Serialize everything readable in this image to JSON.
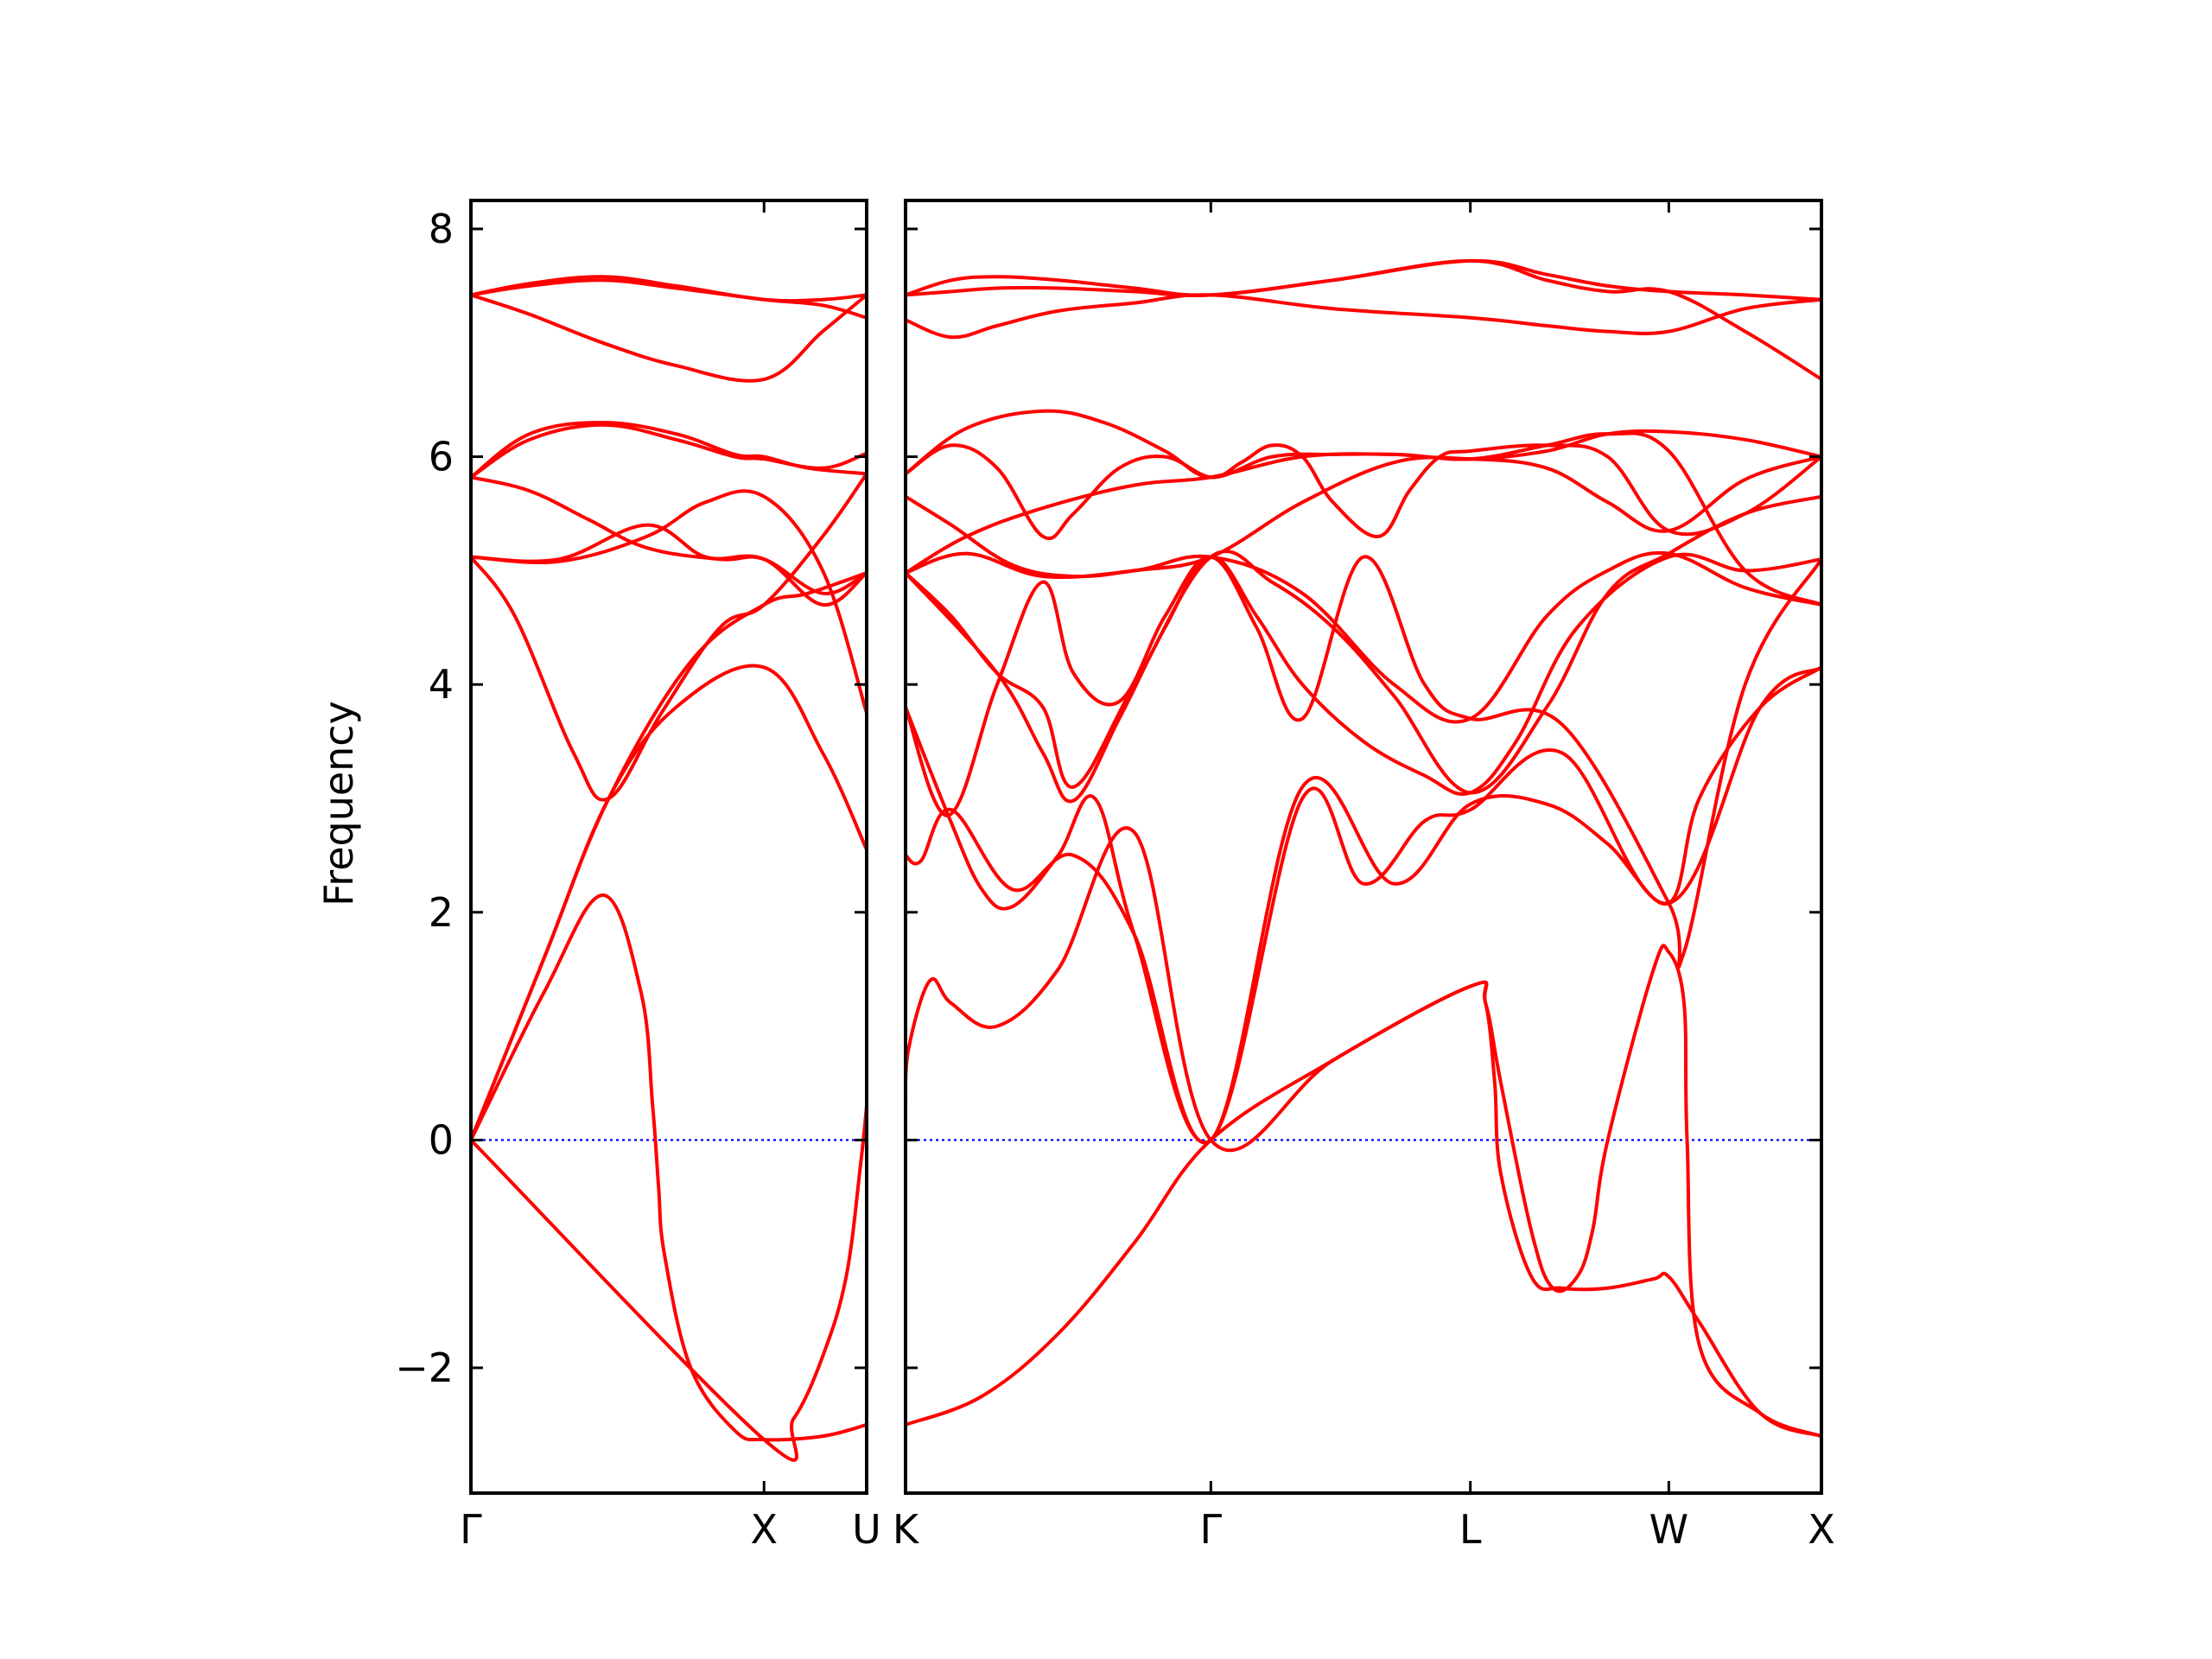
{
  "chart_data": {
    "type": "line",
    "title": "",
    "ylabel": "Frequency",
    "xlabel": "",
    "ylim": [
      -3.1,
      8.25
    ],
    "yticks": [
      -2,
      0,
      2,
      4,
      6,
      8
    ],
    "ytick_labels": [
      "−2",
      "0",
      "2",
      "4",
      "6",
      "8"
    ],
    "grid": false,
    "colors": {
      "bands": "#ff0000",
      "zero_line": "#0000ff",
      "axes": "#000000"
    },
    "zero_line": {
      "y": 0,
      "style": "dotted"
    },
    "panels": [
      {
        "name": "panel-gamma-x-u",
        "x_range": [
          0,
          1.35
        ],
        "xticks": [
          {
            "x": 0,
            "label": "Γ"
          },
          {
            "x": 1.0,
            "label": "X"
          },
          {
            "x": 1.35,
            "label": "U"
          }
        ],
        "series": [
          {
            "x": [
              0,
              0.25,
              0.45,
              0.58,
              0.62,
              0.64,
              0.66,
              0.75,
              0.9,
              1.0,
              1.2,
              1.35
            ],
            "y": [
              0,
              1.3,
              2.15,
              1.3,
              0.3,
              -0.4,
              -1.0,
              -2.0,
              -2.55,
              -2.63,
              -2.6,
              -2.5
            ]
          },
          {
            "x": [
              0,
              1.0,
              1.1,
              1.2,
              1.28,
              1.33,
              1.35
            ],
            "y": [
              0,
              -2.63,
              -2.45,
              -1.9,
              -1.2,
              -0.2,
              0.3
            ]
          },
          {
            "x": [
              0,
              0.25,
              0.47,
              0.7,
              1.0,
              1.2,
              1.35
            ],
            "y": [
              0,
              1.6,
              3.0,
              3.8,
              4.15,
              3.4,
              2.55
            ]
          },
          {
            "x": [
              0,
              0.25,
              0.47,
              0.75,
              1.0,
              1.15,
              1.35
            ],
            "y": [
              0,
              1.6,
              3.0,
              4.2,
              4.7,
              4.8,
              4.98
            ]
          },
          {
            "x": [
              0,
              0.15,
              0.35,
              0.47,
              0.65,
              0.85,
              1.0,
              1.2,
              1.35
            ],
            "y": [
              5.12,
              4.6,
              3.4,
              3.0,
              3.75,
              4.5,
              4.7,
              5.3,
              5.85
            ]
          },
          {
            "x": [
              0,
              0.3,
              0.6,
              0.8,
              1.0,
              1.2,
              1.35
            ],
            "y": [
              5.12,
              5.08,
              5.3,
              5.6,
              5.65,
              5.0,
              3.75
            ]
          },
          {
            "x": [
              0,
              0.3,
              0.6,
              0.8,
              1.0,
              1.2,
              1.35
            ],
            "y": [
              5.12,
              5.1,
              5.4,
              5.12,
              5.1,
              4.7,
              4.98
            ]
          },
          {
            "x": [
              0,
              0.2,
              0.4,
              0.6,
              0.85,
              1.0,
              1.2,
              1.35
            ],
            "y": [
              5.82,
              5.7,
              5.45,
              5.2,
              5.1,
              5.1,
              4.8,
              4.98
            ]
          },
          {
            "x": [
              0,
              0.2,
              0.45,
              0.7,
              0.9,
              1.0,
              1.15,
              1.35
            ],
            "y": [
              5.82,
              6.2,
              6.3,
              6.2,
              6.02,
              6.0,
              5.9,
              5.85
            ]
          },
          {
            "x": [
              0,
              0.2,
              0.45,
              0.7,
              0.9,
              1.0,
              1.2,
              1.35
            ],
            "y": [
              5.82,
              6.15,
              6.28,
              6.15,
              6.0,
              5.98,
              5.9,
              6.03
            ]
          },
          {
            "x": [
              0,
              0.2,
              0.45,
              0.7,
              1.0,
              1.2,
              1.35
            ],
            "y": [
              7.42,
              7.25,
              7.0,
              6.8,
              6.68,
              7.1,
              7.42
            ]
          },
          {
            "x": [
              0,
              0.2,
              0.45,
              0.7,
              1.0,
              1.2,
              1.35
            ],
            "y": [
              7.42,
              7.52,
              7.58,
              7.5,
              7.38,
              7.38,
              7.42
            ]
          },
          {
            "x": [
              0,
              0.2,
              0.45,
              0.7,
              1.0,
              1.2,
              1.35
            ],
            "y": [
              7.42,
              7.5,
              7.55,
              7.48,
              7.38,
              7.33,
              7.22
            ]
          }
        ]
      },
      {
        "name": "panel-k-gamma-l-w-x",
        "x_range": [
          0,
          3.0
        ],
        "xticks": [
          {
            "x": 0,
            "label": "K"
          },
          {
            "x": 1.0,
            "label": "Γ"
          },
          {
            "x": 1.85,
            "label": "L"
          },
          {
            "x": 2.5,
            "label": "W"
          },
          {
            "x": 3.0,
            "label": "X"
          }
        ],
        "series": [
          {
            "x": [
              0,
              0.25,
              0.5,
              0.75,
              1.0,
              1.4,
              1.85,
              1.9,
              1.93,
              1.95,
              2.05,
              2.15,
              2.3,
              2.45,
              2.5,
              2.6,
              2.8,
              3.0
            ],
            "y": [
              -2.5,
              -2.25,
              -1.7,
              -0.9,
              0,
              0.7,
              1.35,
              1.2,
              0.5,
              -0.3,
              -1.2,
              -1.3,
              -1.3,
              -1.22,
              -1.2,
              -1.6,
              -2.4,
              -2.6
            ]
          },
          {
            "x": [
              0,
              0.01,
              0.08,
              0.15,
              0.3,
              0.5,
              0.75,
              1.0,
              1.4,
              1.85,
              1.9,
              1.95,
              2.05,
              2.12,
              2.2,
              2.25,
              2.3,
              2.45,
              2.5,
              2.55,
              2.56,
              2.6,
              2.8,
              3.0
            ],
            "y": [
              0.3,
              0.8,
              1.4,
              1.2,
              1.0,
              1.5,
              2.7,
              0,
              0.7,
              1.35,
              1.2,
              0.5,
              -0.8,
              -1.3,
              -1.2,
              -0.8,
              0,
              1.5,
              1.65,
              1.2,
              0,
              -1.8,
              -2.4,
              -2.6
            ]
          },
          {
            "x": [
              0,
              0.05,
              0.15,
              0.35,
              0.55,
              0.75,
              1.0,
              1.3,
              1.6,
              1.85,
              2.1,
              2.3,
              2.5,
              2.6,
              2.8,
              3.0
            ],
            "y": [
              2.5,
              2.45,
              2.9,
              2.2,
              2.5,
              1.8,
              0,
              3.1,
              2.25,
              2.95,
              2.95,
              2.6,
              2.08,
              3.0,
              3.8,
              4.15
            ]
          },
          {
            "x": [
              0,
              0.14,
              0.25,
              0.35,
              0.5,
              0.62,
              0.75,
              1.0,
              1.3,
              1.5,
              1.7,
              1.85,
              2.15,
              2.5,
              2.8,
              3.0
            ],
            "y": [
              3.8,
              2.85,
              2.2,
              2.05,
              2.5,
              3.0,
              1.8,
              0,
              3.0,
              2.25,
              2.8,
              2.9,
              3.4,
              2.08,
              3.8,
              4.15
            ]
          },
          {
            "x": [
              0,
              0.14,
              0.3,
              0.45,
              0.55,
              0.7,
              0.85,
              1.0,
              1.15,
              1.3,
              1.5,
              1.7,
              1.85,
              2.15,
              2.5,
              2.55,
              2.75,
              3.0
            ],
            "y": [
              3.8,
              2.85,
              4.0,
              4.9,
              4.1,
              3.85,
              4.6,
              5.12,
              4.5,
              3.7,
              5.12,
              4.0,
              3.7,
              3.65,
              2.08,
              1.65,
              4.0,
              5.1
            ]
          },
          {
            "x": [
              0,
              0.3,
              0.45,
              0.55,
              0.7,
              0.85,
              1.0,
              1.15,
              1.3,
              1.5,
              1.7,
              1.85,
              2.0,
              2.2,
              2.5,
              2.75,
              3.0
            ],
            "y": [
              4.98,
              4.1,
              3.4,
              2.98,
              3.7,
              4.5,
              5.12,
              4.6,
              4.0,
              3.5,
              3.2,
              3.05,
              3.5,
              4.5,
              5.12,
              5.0,
              5.1
            ]
          },
          {
            "x": [
              0,
              0.15,
              0.3,
              0.45,
              0.55,
              0.75,
              1.0,
              1.2,
              1.4,
              1.6,
              1.85,
              2.1,
              2.3,
              2.5,
              2.75,
              3.0
            ],
            "y": [
              4.98,
              4.6,
              4.1,
              3.8,
              3.1,
              4.0,
              5.12,
              4.9,
              4.5,
              3.9,
              3.05,
              3.8,
              4.8,
              5.15,
              5.5,
              5.65
            ]
          },
          {
            "x": [
              0,
              0.2,
              0.45,
              0.75,
              1.0,
              1.3,
              1.6,
              1.85,
              2.1,
              2.3,
              2.5,
              2.75,
              3.0
            ],
            "y": [
              4.98,
              5.15,
              4.95,
              5.0,
              5.12,
              4.8,
              4.0,
              3.7,
              4.6,
              5.0,
              5.15,
              4.85,
              4.7
            ]
          },
          {
            "x": [
              0,
              0.2,
              0.45,
              0.75,
              1.0,
              1.3,
              1.6,
              1.85,
              2.1,
              2.3,
              2.5,
              2.75,
              3.0
            ],
            "y": [
              4.98,
              5.3,
              5.55,
              5.75,
              5.82,
              6.0,
              6.02,
              5.98,
              6.1,
              6.2,
              6.05,
              5.0,
              4.7
            ]
          },
          {
            "x": [
              0,
              0.15,
              0.3,
              0.45,
              0.55,
              0.7,
              0.85,
              1.0,
              1.1,
              1.2,
              1.3,
              1.4,
              1.55,
              1.65,
              1.75,
              1.85,
              2.1,
              2.3,
              2.5,
              2.75,
              3.0
            ],
            "y": [
              5.85,
              6.1,
              5.9,
              5.3,
              5.5,
              5.9,
              6.0,
              5.82,
              5.95,
              6.1,
              6.0,
              5.6,
              5.3,
              5.7,
              6.0,
              6.05,
              6.1,
              6.0,
              5.35,
              5.5,
              6.0
            ]
          },
          {
            "x": [
              0,
              0.2,
              0.45,
              0.65,
              0.85,
              1.0,
              1.2,
              1.4,
              1.6,
              1.85,
              2.1,
              2.3,
              2.5,
              2.75,
              3.0
            ],
            "y": [
              5.85,
              6.25,
              6.4,
              6.3,
              6.05,
              5.82,
              6.0,
              6.02,
              6.02,
              5.98,
              6.05,
              6.2,
              6.22,
              6.15,
              6.0
            ]
          },
          {
            "x": [
              0,
              0.15,
              0.35,
              0.55,
              0.75,
              1.0,
              1.3,
              1.6,
              1.85,
              2.1,
              2.3,
              2.5,
              2.75,
              3.0
            ],
            "y": [
              5.65,
              5.4,
              5.05,
              4.95,
              5.0,
              5.12,
              5.6,
              5.95,
              5.98,
              5.9,
              5.6,
              5.35,
              5.8,
              6.0
            ]
          },
          {
            "x": [
              0,
              0.15,
              0.3,
              0.5,
              0.75,
              1.0,
              1.4,
              1.85,
              2.1,
              2.3,
              2.5,
              2.75,
              3.0
            ],
            "y": [
              7.2,
              7.05,
              7.15,
              7.28,
              7.35,
              7.42,
              7.3,
              7.22,
              7.15,
              7.1,
              7.1,
              7.3,
              7.38
            ]
          },
          {
            "x": [
              0,
              0.15,
              0.3,
              0.5,
              0.75,
              1.0,
              1.4,
              1.85,
              2.1,
              2.3,
              2.5,
              2.75,
              3.0
            ],
            "y": [
              7.42,
              7.55,
              7.58,
              7.55,
              7.48,
              7.42,
              7.55,
              7.72,
              7.6,
              7.5,
              7.45,
              7.42,
              7.38
            ]
          },
          {
            "x": [
              0,
              0.15,
              0.3,
              0.5,
              0.75,
              1.0,
              1.4,
              1.85,
              2.1,
              2.3,
              2.5,
              2.75,
              3.0
            ],
            "y": [
              7.42,
              7.45,
              7.48,
              7.48,
              7.45,
              7.42,
              7.55,
              7.72,
              7.55,
              7.45,
              7.45,
              7.1,
              6.68
            ]
          }
        ]
      }
    ]
  }
}
